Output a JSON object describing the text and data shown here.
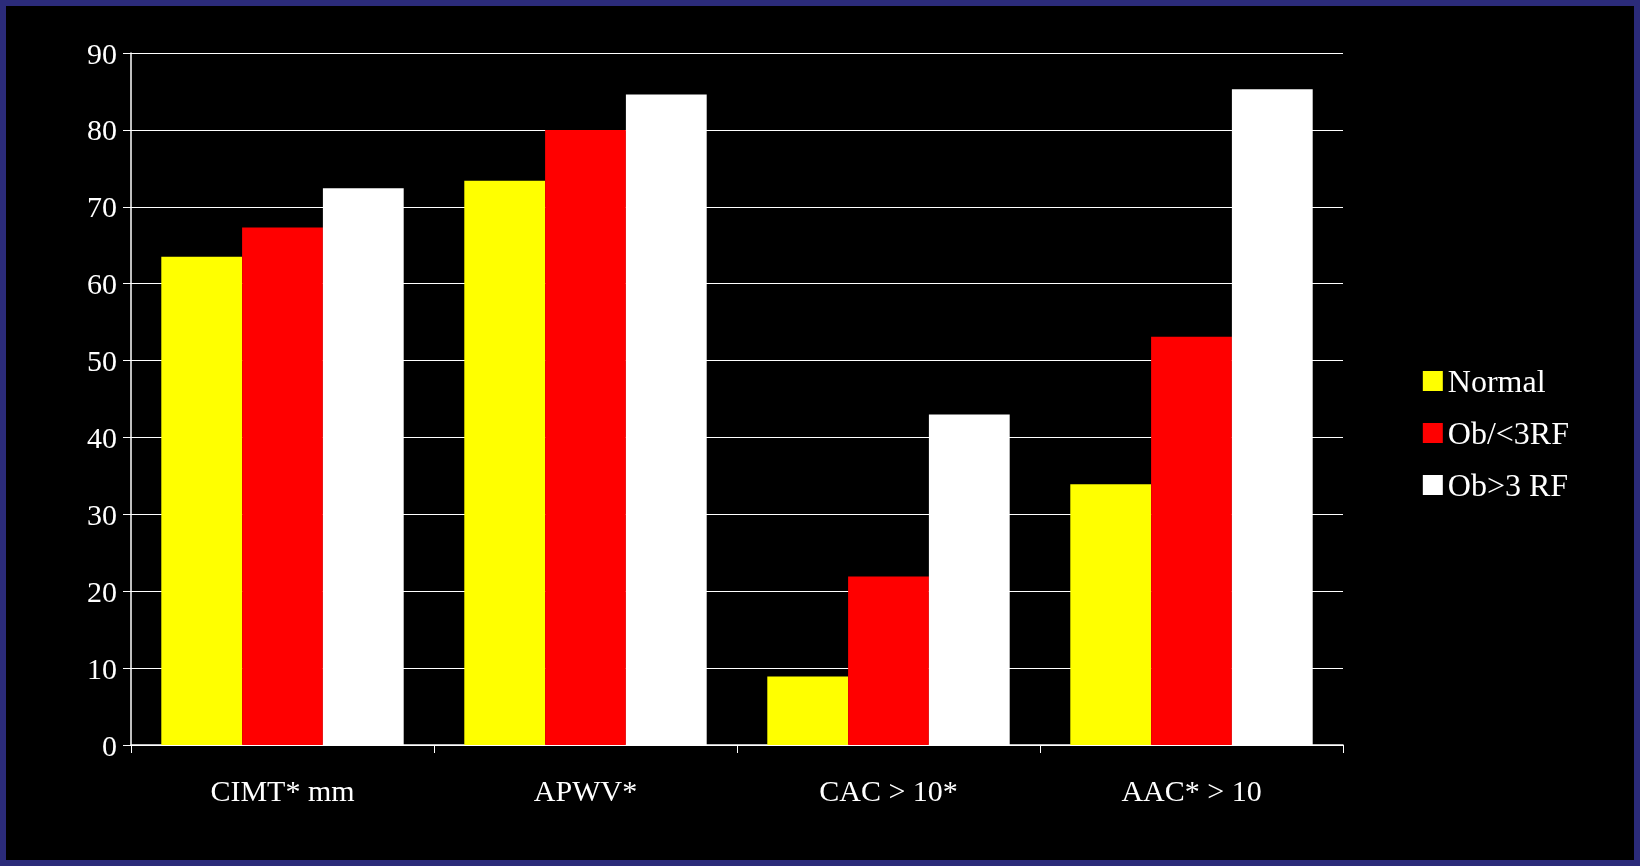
{
  "chart_data": {
    "type": "bar",
    "categories": [
      "CIMT* mm",
      "APWV*",
      "CAC > 10*",
      "AAC* > 10"
    ],
    "series": [
      {
        "name": "Normal",
        "color": "#ffff00",
        "values": [
          63.5,
          73.4,
          8.9,
          33.9
        ]
      },
      {
        "name": "Ob/<3RF",
        "color": "#ff0000",
        "values": [
          67.3,
          80,
          21.9,
          53.1
        ]
      },
      {
        "name": "Ob>3 RF",
        "color": "#ffffff",
        "values": [
          72.4,
          84.6,
          43,
          85.3
        ]
      }
    ],
    "ylim": [
      0,
      90
    ],
    "yticks": [
      0,
      10,
      20,
      30,
      40,
      50,
      60,
      70,
      80,
      90
    ],
    "grid": "y",
    "legend": "right"
  }
}
